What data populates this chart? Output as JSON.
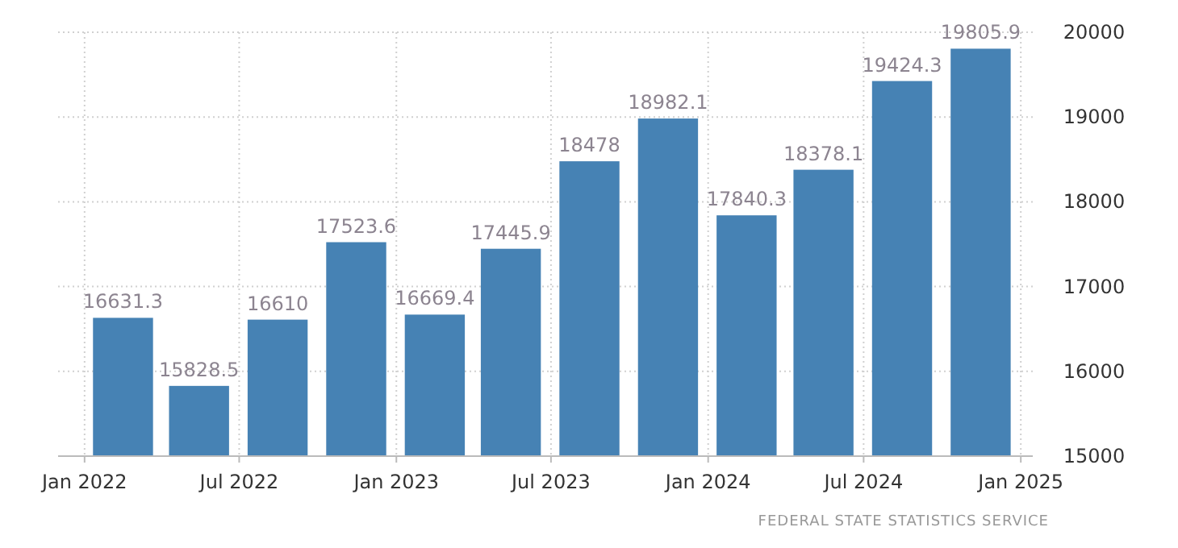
{
  "chart_data": {
    "type": "bar",
    "x": [
      "2022-02-15",
      "2022-05-15",
      "2022-08-15",
      "2022-11-15",
      "2023-02-15",
      "2023-05-15",
      "2023-08-15",
      "2023-11-15",
      "2024-02-15",
      "2024-05-15",
      "2024-08-15",
      "2024-11-15"
    ],
    "values": [
      16631.3,
      15828.5,
      16610,
      17523.6,
      16669.4,
      17445.9,
      18478,
      18982.1,
      17840.3,
      18378.1,
      19424.3,
      19805.9
    ],
    "color": "#4682b4",
    "data_labels": true,
    "xlim": [
      "2021-12-01",
      "2025-01-15"
    ],
    "xticks": [
      {
        "value": "2022-01-01",
        "label": "Jan 2022"
      },
      {
        "value": "2022-07-01",
        "label": "Jul 2022"
      },
      {
        "value": "2023-01-01",
        "label": "Jan 2023"
      },
      {
        "value": "2023-07-01",
        "label": "Jul 2023"
      },
      {
        "value": "2024-01-01",
        "label": "Jan 2024"
      },
      {
        "value": "2024-07-01",
        "label": "Jul 2024"
      },
      {
        "value": "2025-01-01",
        "label": "Jan 2025"
      }
    ],
    "ylim": [
      15000,
      20000
    ],
    "yticks": [
      15000,
      16000,
      17000,
      18000,
      19000,
      20000
    ],
    "grid": true,
    "annotations": [
      "FEDERAL STATE STATISTICS SERVICE"
    ]
  }
}
